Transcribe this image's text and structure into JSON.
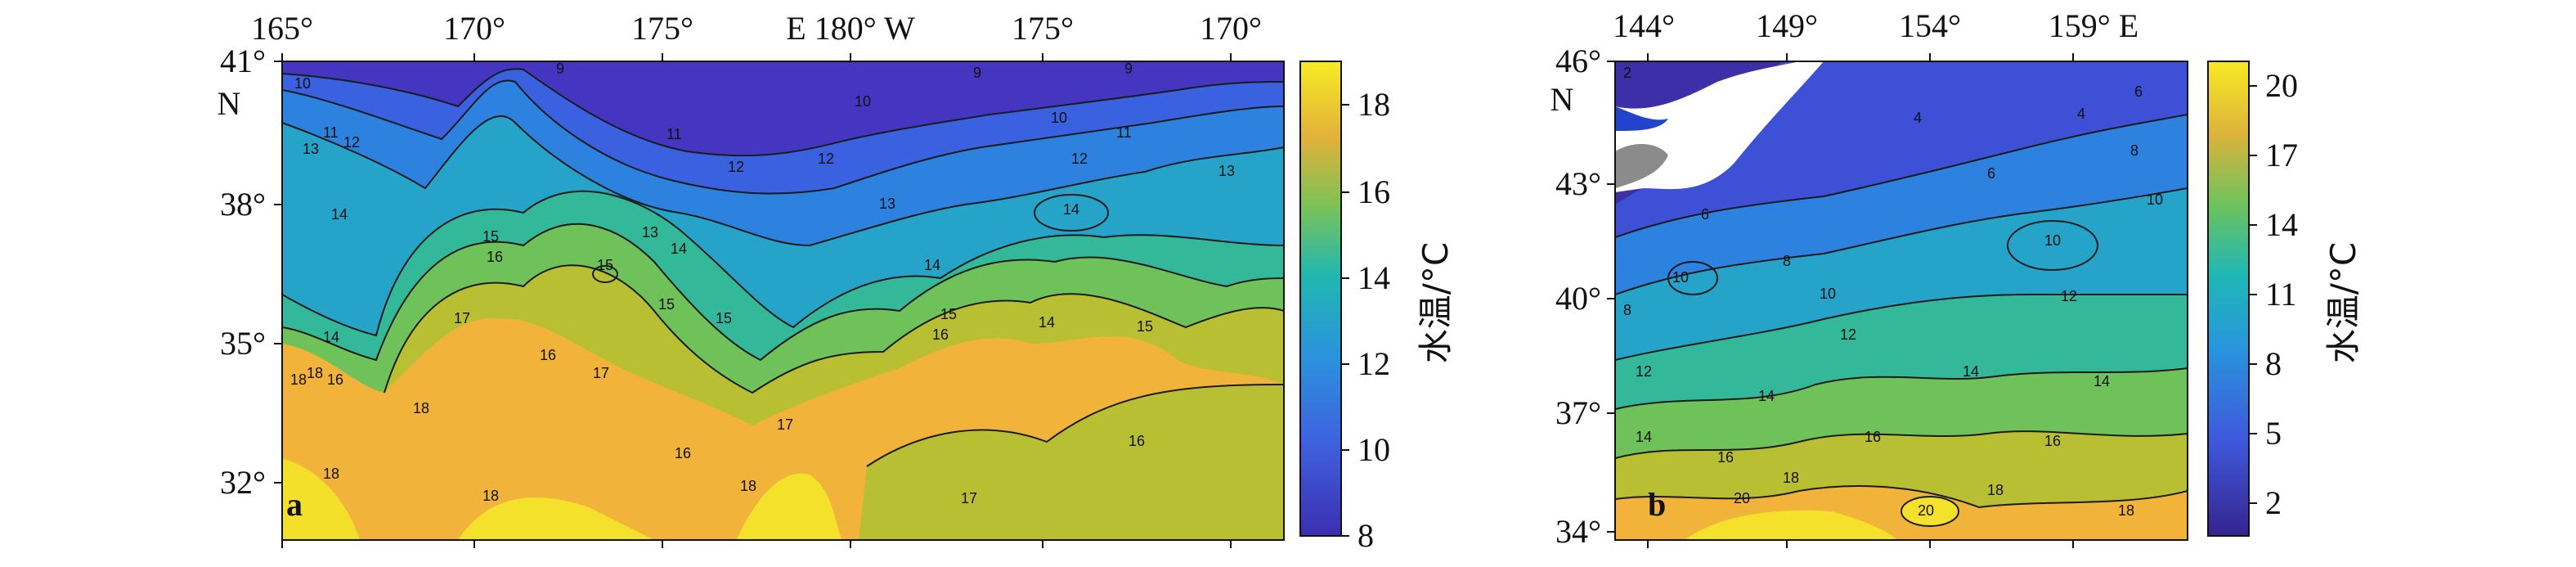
{
  "panels": [
    {
      "id": "a",
      "letter": "a",
      "x_ticks": [
        "165°",
        "170°",
        "175°",
        "E 180° W",
        "175°",
        "170°"
      ],
      "y_ticks": [
        "41°",
        "38°",
        "35°",
        "32°"
      ],
      "y_hemisphere": "N",
      "colorbar_ticks": [
        "8",
        "10",
        "12",
        "14",
        "16",
        "18"
      ],
      "colorbar_title": "水温/°C",
      "colorbar_range": [
        8,
        19
      ],
      "isotherm_labels": [
        "9",
        "9",
        "9",
        "10",
        "10",
        "10",
        "11",
        "11",
        "11",
        "12",
        "12",
        "12",
        "12",
        "13",
        "13",
        "13",
        "13",
        "14",
        "14",
        "14",
        "14",
        "14",
        "14",
        "15",
        "15",
        "15",
        "15",
        "15",
        "15",
        "16",
        "16",
        "16",
        "16",
        "16",
        "16",
        "17",
        "17",
        "17",
        "17",
        "18",
        "18",
        "18",
        "18",
        "18",
        "18"
      ],
      "colors": {
        "cold": "#4b3fc7",
        "mid": "#23a9c8",
        "warm": "#f3b63a",
        "hot": "#f4e12b"
      }
    },
    {
      "id": "b",
      "letter": "b",
      "x_ticks": [
        "144°",
        "149°",
        "154°",
        "159° E"
      ],
      "y_ticks": [
        "46°",
        "43°",
        "40°",
        "37°",
        "34°"
      ],
      "y_hemisphere": "N",
      "colorbar_ticks": [
        "20",
        "17",
        "14",
        "11",
        "8",
        "5",
        "2"
      ],
      "colorbar_title": "水温/°C",
      "colorbar_range": [
        1,
        21
      ],
      "isotherm_labels": [
        "2",
        "4",
        "4",
        "6",
        "6",
        "6",
        "8",
        "8",
        "8",
        "10",
        "10",
        "10",
        "10",
        "12",
        "12",
        "12",
        "14",
        "14",
        "14",
        "14",
        "16",
        "16",
        "16",
        "18",
        "18",
        "18",
        "20",
        "20"
      ],
      "colors": {
        "land": "#8a8a8a",
        "ice": "#ffffff",
        "cold": "#3c37b5",
        "warm": "#f3b63a",
        "hot": "#f4e12b"
      }
    }
  ]
}
